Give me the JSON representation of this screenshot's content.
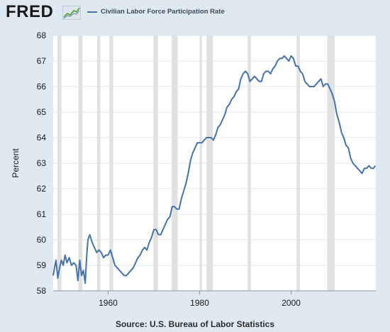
{
  "header": {
    "logo_text": "FRED",
    "logo_icon": "trend-graph-icon",
    "legend_label": "Civilian Labor Force Participation Rate"
  },
  "footer": {
    "source": "Source: U.S. Bureau of Labor Statistics"
  },
  "colors": {
    "background": "#e1e9f0",
    "plot_background": "#ffffff",
    "series": "#4572a7",
    "recession_shading": "#e1e1e1",
    "gridline": "#dfe5ec"
  },
  "chart_data": {
    "type": "line",
    "title": "",
    "xlabel": "",
    "ylabel": "Percent",
    "xlim": [
      1948,
      2018.5
    ],
    "ylim": [
      58,
      68
    ],
    "x_ticks": [
      1960,
      1980,
      2000
    ],
    "y_ticks": [
      58,
      59,
      60,
      61,
      62,
      63,
      64,
      65,
      66,
      67,
      68
    ],
    "grid": "horizontal",
    "legend_position": "top-left",
    "recessions": [
      [
        1948.9,
        1949.8
      ],
      [
        1953.5,
        1954.4
      ],
      [
        1957.6,
        1958.3
      ],
      [
        1960.3,
        1961.1
      ],
      [
        1969.9,
        1970.9
      ],
      [
        1973.9,
        1975.2
      ],
      [
        1980.0,
        1980.5
      ],
      [
        1981.5,
        1982.9
      ],
      [
        1990.5,
        1991.2
      ],
      [
        2001.2,
        2001.9
      ],
      [
        2007.9,
        2009.5
      ]
    ],
    "series": [
      {
        "name": "Civilian Labor Force Participation Rate",
        "x": [
          1948.0,
          1948.3,
          1948.6,
          1949.0,
          1949.4,
          1949.8,
          1950.2,
          1950.6,
          1951.0,
          1951.5,
          1952.0,
          1952.5,
          1953.0,
          1953.4,
          1953.8,
          1954.2,
          1954.6,
          1955.0,
          1955.3,
          1955.6,
          1956.0,
          1956.5,
          1957.0,
          1957.5,
          1958.0,
          1958.5,
          1959.0,
          1959.5,
          1960.0,
          1960.5,
          1961.0,
          1961.5,
          1962.0,
          1962.5,
          1963.0,
          1963.5,
          1964.0,
          1964.5,
          1965.0,
          1965.5,
          1966.0,
          1966.5,
          1967.0,
          1967.5,
          1968.0,
          1968.5,
          1969.0,
          1969.5,
          1970.0,
          1970.5,
          1971.0,
          1971.5,
          1972.0,
          1972.5,
          1973.0,
          1973.5,
          1974.0,
          1974.5,
          1975.0,
          1975.5,
          1976.0,
          1976.5,
          1977.0,
          1977.5,
          1978.0,
          1978.5,
          1979.0,
          1979.5,
          1980.0,
          1980.5,
          1981.0,
          1981.5,
          1982.0,
          1982.5,
          1983.0,
          1983.5,
          1984.0,
          1984.5,
          1985.0,
          1985.5,
          1986.0,
          1986.5,
          1987.0,
          1987.5,
          1988.0,
          1988.5,
          1989.0,
          1989.5,
          1990.0,
          1990.5,
          1991.0,
          1991.5,
          1992.0,
          1992.5,
          1993.0,
          1993.5,
          1994.0,
          1994.5,
          1995.0,
          1995.5,
          1996.0,
          1996.5,
          1997.0,
          1997.5,
          1998.0,
          1998.5,
          1999.0,
          1999.5,
          2000.0,
          2000.5,
          2001.0,
          2001.5,
          2002.0,
          2002.5,
          2003.0,
          2003.5,
          2004.0,
          2004.5,
          2005.0,
          2005.5,
          2006.0,
          2006.5,
          2007.0,
          2007.5,
          2008.0,
          2008.5,
          2009.0,
          2009.5,
          2010.0,
          2010.5,
          2011.0,
          2011.5,
          2012.0,
          2012.5,
          2013.0,
          2013.5,
          2014.0,
          2014.5,
          2015.0,
          2015.5,
          2016.0,
          2016.5,
          2017.0,
          2017.5,
          2018.0,
          2018.4
        ],
        "values": [
          58.6,
          58.9,
          59.2,
          58.5,
          58.9,
          59.2,
          59.0,
          59.4,
          59.1,
          59.3,
          59.0,
          59.1,
          59.0,
          58.4,
          59.2,
          58.6,
          58.8,
          58.3,
          59.3,
          60.0,
          60.2,
          59.9,
          59.7,
          59.5,
          59.6,
          59.5,
          59.3,
          59.4,
          59.4,
          59.6,
          59.3,
          59.0,
          58.9,
          58.8,
          58.7,
          58.6,
          58.6,
          58.7,
          58.8,
          58.9,
          59.1,
          59.3,
          59.4,
          59.6,
          59.7,
          59.6,
          59.9,
          60.1,
          60.4,
          60.4,
          60.2,
          60.2,
          60.4,
          60.6,
          60.8,
          60.9,
          61.3,
          61.3,
          61.2,
          61.2,
          61.6,
          61.9,
          62.2,
          62.6,
          63.1,
          63.4,
          63.6,
          63.8,
          63.8,
          63.8,
          63.9,
          64.0,
          64.0,
          64.0,
          63.9,
          64.1,
          64.4,
          64.5,
          64.7,
          64.9,
          65.2,
          65.3,
          65.5,
          65.6,
          65.8,
          65.9,
          66.3,
          66.5,
          66.6,
          66.5,
          66.2,
          66.3,
          66.4,
          66.3,
          66.2,
          66.2,
          66.5,
          66.6,
          66.6,
          66.5,
          66.7,
          66.8,
          67.0,
          67.1,
          67.1,
          67.2,
          67.1,
          67.0,
          67.2,
          67.1,
          66.8,
          66.8,
          66.6,
          66.5,
          66.2,
          66.1,
          66.0,
          66.0,
          66.0,
          66.1,
          66.2,
          66.3,
          66.0,
          66.1,
          66.1,
          65.9,
          65.7,
          65.4,
          64.9,
          64.6,
          64.2,
          64.0,
          63.7,
          63.6,
          63.2,
          63.0,
          62.9,
          62.8,
          62.7,
          62.6,
          62.8,
          62.8,
          62.9,
          62.8,
          62.8,
          62.9
        ]
      }
    ]
  }
}
